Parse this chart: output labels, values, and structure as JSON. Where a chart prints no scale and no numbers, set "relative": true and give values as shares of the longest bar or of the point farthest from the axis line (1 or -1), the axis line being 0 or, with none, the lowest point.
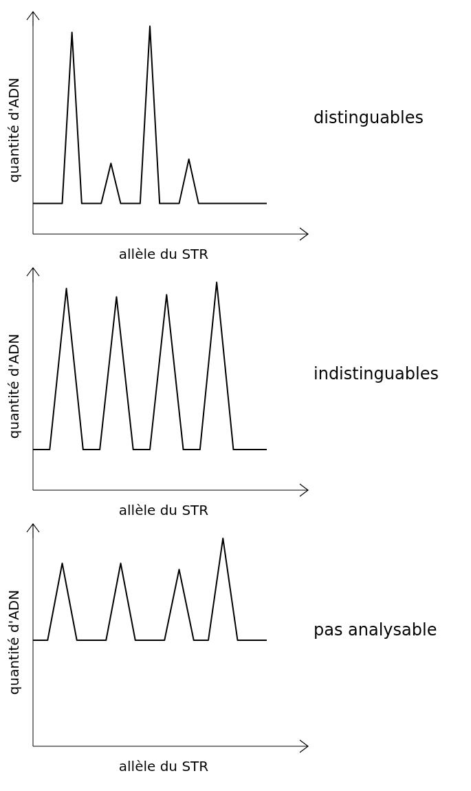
{
  "chart_data": [
    {
      "type": "line",
      "relative": true,
      "ylabel": "quantité d'ADN",
      "xlabel": "allèle du STR",
      "annotations": [
        "distinguables"
      ],
      "color": "#000000",
      "categories": [
        null,
        null,
        null,
        null,
        null,
        null,
        null,
        null,
        null,
        null,
        null,
        null,
        null,
        null,
        null,
        null,
        null,
        null,
        null,
        null,
        null,
        null,
        null,
        null,
        null
      ],
      "values": [
        0.147,
        0.147,
        0.147,
        0.147,
        0.97,
        0.147,
        0.147,
        0.147,
        0.34,
        0.147,
        0.147,
        0.147,
        1,
        0.147,
        0.147,
        0.147,
        0.36,
        0.147,
        0.147,
        0.147,
        0.147,
        0.147,
        0.147,
        0.147,
        0.147
      ]
    },
    {
      "type": "line",
      "relative": true,
      "ylabel": "quantité d'ADN",
      "xlabel": "allèle du STR",
      "annotations": [
        "indistinguables"
      ],
      "color": "#000000",
      "categories": [
        null,
        null,
        null,
        null,
        null,
        null,
        null,
        null,
        null,
        null,
        null,
        null,
        null,
        null,
        null
      ],
      "values": [
        0.195,
        0.195,
        0.97,
        0.195,
        0.195,
        0.93,
        0.195,
        0.195,
        0.94,
        0.195,
        0.195,
        1,
        0.195,
        0.195,
        0.195
      ]
    },
    {
      "type": "line",
      "relative": true,
      "ylabel": "quantité d'ADN",
      "xlabel": "allèle du STR",
      "annotations": [
        "pas analysable"
      ],
      "color": "#000000",
      "categories": [
        null,
        null,
        null,
        null,
        null,
        null,
        null,
        null,
        null,
        null,
        null,
        null,
        null,
        null,
        null,
        null,
        null
      ],
      "values": [
        0.51,
        0.51,
        0.88,
        0.51,
        0.51,
        0.51,
        0.88,
        0.51,
        0.51,
        0.51,
        0.85,
        0.51,
        0.51,
        1,
        0.51,
        0.51,
        0.51
      ]
    }
  ]
}
